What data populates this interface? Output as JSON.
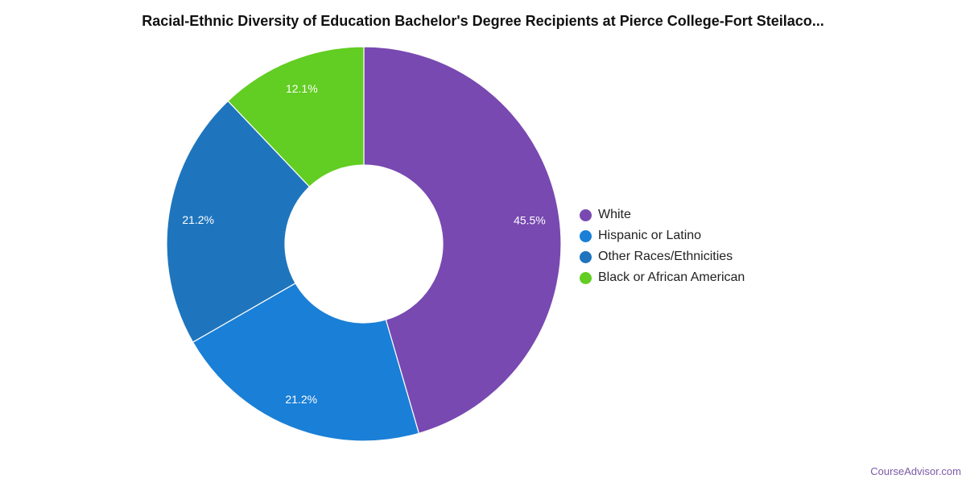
{
  "title": "Racial-Ethnic Diversity of Education Bachelor's Degree Recipients at Pierce College-Fort Steilaco...",
  "source": "CourseAdvisor.com",
  "chart_data": {
    "type": "pie",
    "subtype": "donut",
    "title": "Racial-Ethnic Diversity of Education Bachelor's Degree Recipients at Pierce College-Fort Steilaco...",
    "legend_position": "right",
    "slices": [
      {
        "name": "White",
        "value": 45.5,
        "label": "45.5%",
        "color": "#7849b1"
      },
      {
        "name": "Hispanic or Latino",
        "value": 21.2,
        "label": "21.2%",
        "color": "#1a7fd6"
      },
      {
        "name": "Other Races/Ethnicities",
        "value": 21.2,
        "label": "21.2%",
        "color": "#1f75bd"
      },
      {
        "name": "Black or African American",
        "value": 12.1,
        "label": "12.1%",
        "color": "#62cd22"
      }
    ]
  }
}
